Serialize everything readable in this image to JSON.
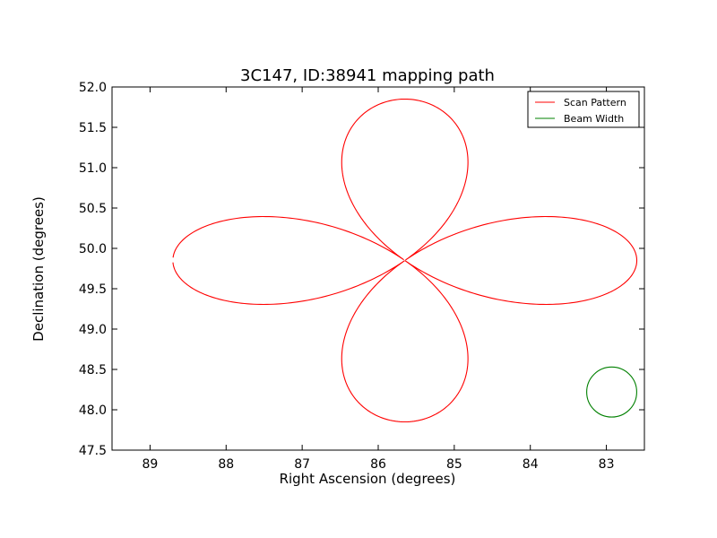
{
  "chart_data": {
    "type": "line",
    "title": "3C147, ID:38941 mapping path",
    "xlabel": "Right Ascension (degrees)",
    "ylabel": "Declination (degrees)",
    "xlim": [
      89.5,
      82.5
    ],
    "ylim": [
      47.5,
      52.0
    ],
    "x_inverted": true,
    "x_ticks": [
      "89",
      "88",
      "87",
      "86",
      "85",
      "84",
      "83"
    ],
    "x_tick_values": [
      89,
      88,
      87,
      86,
      85,
      84,
      83
    ],
    "y_ticks": [
      "47.5",
      "48.0",
      "48.5",
      "49.0",
      "49.5",
      "50.0",
      "50.5",
      "51.0",
      "51.5",
      "52.0"
    ],
    "y_tick_values": [
      47.5,
      48.0,
      48.5,
      49.0,
      49.5,
      50.0,
      50.5,
      51.0,
      51.5,
      52.0
    ],
    "grid": false,
    "legend_position": "top-right",
    "series": [
      {
        "name": "Scan Pattern",
        "color": "#ff0000",
        "shape": "four-petal rose",
        "center": [
          85.65,
          49.85
        ],
        "half_width_ra": 3.05,
        "half_height_dec": 2.0,
        "start_ra": 88.72,
        "start_dec": 49.82
      },
      {
        "name": "Beam Width",
        "color": "#008000",
        "shape": "circle",
        "center": [
          82.93,
          48.22
        ],
        "radius_dec": 0.31
      }
    ]
  }
}
